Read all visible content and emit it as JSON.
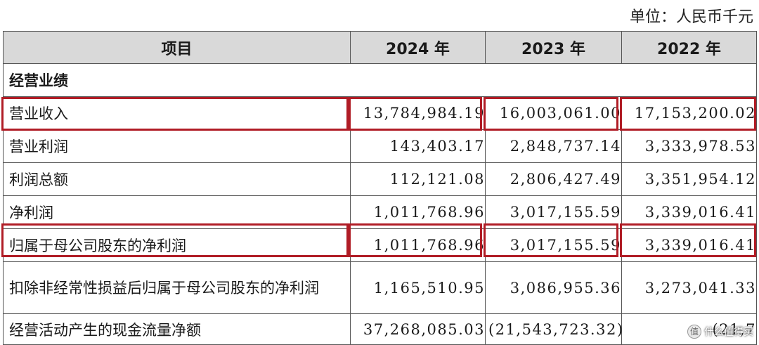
{
  "unit_label": "单位：人民币千元",
  "table": {
    "headers": [
      "项目",
      "2024 年",
      "2023 年",
      "2022 年"
    ],
    "section": "经营业绩",
    "rows": [
      {
        "label": "营业收入",
        "v2024": "13,784,984.19",
        "v2023": "16,003,061.00",
        "v2022": "17,153,200.02"
      },
      {
        "label": "营业利润",
        "v2024": "143,403.17",
        "v2023": "2,848,737.14",
        "v2022": "3,333,978.53"
      },
      {
        "label": "利润总额",
        "v2024": "112,121.08",
        "v2023": "2,806,427.49",
        "v2022": "3,351,954.12"
      },
      {
        "label": "净利润",
        "v2024": "1,011,768.96",
        "v2023": "3,017,155.59",
        "v2022": "3,339,016.41"
      },
      {
        "label": "归属于母公司股东的净利润",
        "v2024": "1,011,768.96",
        "v2023": "3,017,155.59",
        "v2022": "3,339,016.41"
      },
      {
        "label": "扣除非经常性损益后归属于母公司股东的净利润",
        "v2024": "1,165,510.95",
        "v2023": "3,086,955.36",
        "v2022": "3,273,041.33"
      },
      {
        "label": "经营活动产生的现金流量净额",
        "v2024": "37,268,085.03",
        "v2023": "(21,543,723.32)",
        "v2022": "(21,7"
      }
    ]
  },
  "watermark": {
    "logo_text": "值",
    "text": "什么值得买"
  },
  "colors": {
    "highlight": "#b01c25",
    "header_bg": "#d9d9d9"
  }
}
